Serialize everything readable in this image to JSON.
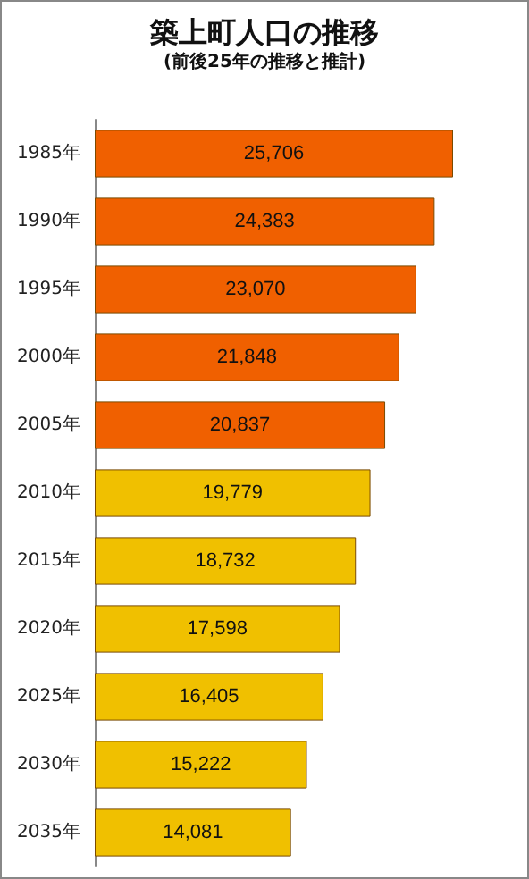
{
  "chart_data": {
    "type": "bar",
    "orientation": "horizontal",
    "title": "築上町人口の推移",
    "subtitle": "(前後25年の推移と推計)",
    "categories": [
      "1985年",
      "1990年",
      "1995年",
      "2000年",
      "2005年",
      "2010年",
      "2015年",
      "2020年",
      "2025年",
      "2030年",
      "2035年"
    ],
    "values": [
      25706,
      24383,
      23070,
      21848,
      20837,
      19779,
      18732,
      17598,
      16405,
      15222,
      14081
    ],
    "value_labels": [
      "25,706",
      "24,383",
      "23,070",
      "21,848",
      "20,837",
      "19,779",
      "18,732",
      "17,598",
      "16,405",
      "15,222",
      "14,081"
    ],
    "colors": [
      "#f06000",
      "#f06000",
      "#f06000",
      "#f06000",
      "#f06000",
      "#f0c000",
      "#f0c000",
      "#f0c000",
      "#f0c000",
      "#f0c000",
      "#f0c000"
    ],
    "grid": false
  }
}
